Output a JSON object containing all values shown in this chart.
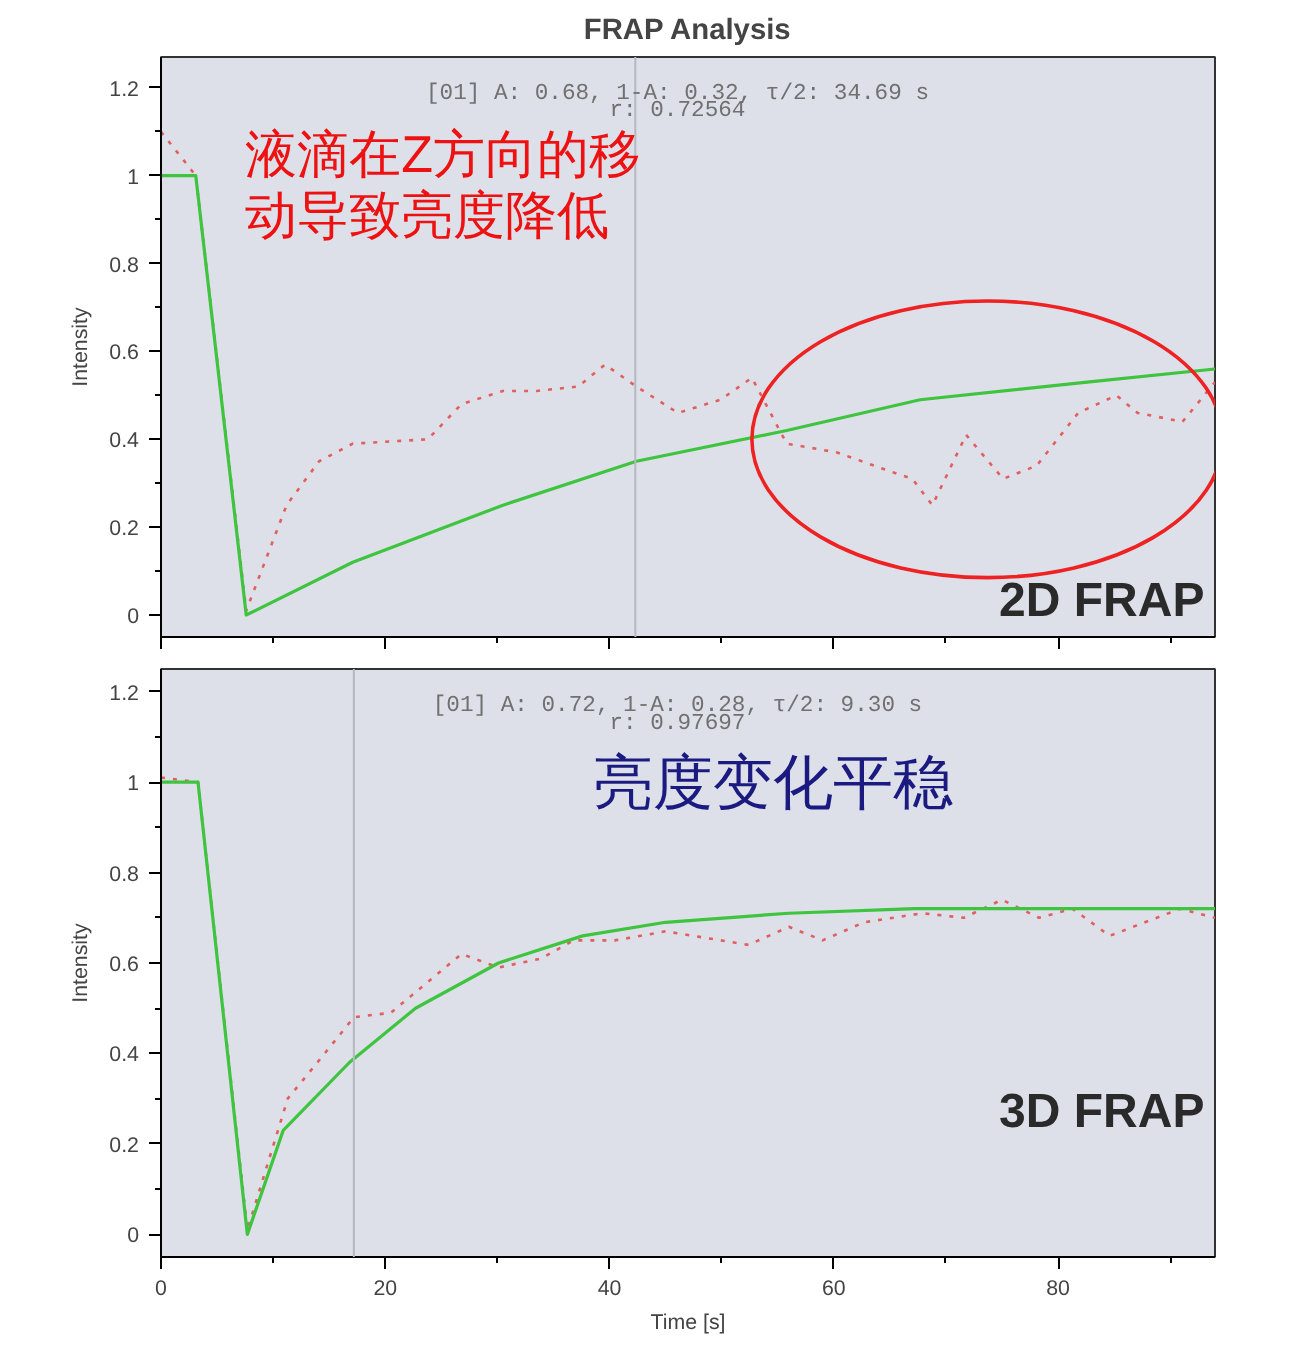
{
  "chart_data": [
    {
      "type": "line",
      "title": "FRAP Analysis",
      "ylabel": "Intensity",
      "xlim": [
        0,
        94
      ],
      "xticks": [
        0,
        20,
        40,
        60,
        80
      ],
      "ylim": [
        -0.05,
        1.27
      ],
      "yticks": [
        0,
        0.2,
        0.4,
        0.6,
        0.8,
        1,
        1.2
      ],
      "tick_labels": "y",
      "grid": false,
      "series": [
        {
          "color": "#e06060",
          "line_style": "dotted",
          "x": [
            0,
            3.1,
            7.6,
            11.2,
            14.1,
            17.1,
            23.8,
            26.8,
            30.5,
            33.5,
            37.2,
            39.6,
            42.4,
            46.1,
            49.9,
            52.7,
            55.8,
            60.3,
            64.7,
            67,
            68.8,
            71.8,
            75.1,
            78.1,
            81.8,
            85.2,
            87.1,
            91.1,
            94
          ],
          "values": [
            1.1,
            1.0,
            0.01,
            0.25,
            0.35,
            0.39,
            0.4,
            0.48,
            0.51,
            0.51,
            0.52,
            0.57,
            0.52,
            0.46,
            0.49,
            0.54,
            0.39,
            0.37,
            0.33,
            0.31,
            0.25,
            0.41,
            0.31,
            0.34,
            0.46,
            0.5,
            0.46,
            0.44,
            0.53
          ]
        },
        {
          "color": "#3ec43e",
          "line_style": "solid",
          "x": [
            0,
            3.1,
            7.6,
            17.1,
            30.5,
            42.4,
            55.8,
            67.7,
            82.6,
            94
          ],
          "values": [
            1.0,
            1.0,
            0.0,
            0.12,
            0.25,
            0.35,
            0.42,
            0.49,
            0.53,
            0.56
          ]
        }
      ],
      "ref_lines": [
        {
          "axis": "x",
          "value": 42.3,
          "color": "#b4b8c0"
        }
      ],
      "annotations": [
        "[01] A: 0.68, 1-A: 0.32, τ/2: 34.69 s",
        "r: 0.72564",
        "液滴在Z方向的移",
        "动导致亮度降低",
        "2D FRAP"
      ]
    },
    {
      "type": "line",
      "xlabel": "Time [s]",
      "ylabel": "Intensity",
      "xlim": [
        0,
        94
      ],
      "xticks": [
        0,
        20,
        40,
        60,
        80
      ],
      "ylim": [
        -0.05,
        1.25
      ],
      "yticks": [
        0,
        0.2,
        0.4,
        0.6,
        0.8,
        1,
        1.2
      ],
      "grid": false,
      "series": [
        {
          "color": "#e06060",
          "line_style": "dotted",
          "x": [
            0,
            3.3,
            7.7,
            11.3,
            14.6,
            17.2,
            20.5,
            26.8,
            30.1,
            33.9,
            36.8,
            40.5,
            45,
            52.4,
            56,
            59,
            62.7,
            67.9,
            71.6,
            75,
            78.3,
            81.3,
            84.6,
            90.9,
            94
          ],
          "values": [
            1.01,
            1.0,
            0.01,
            0.3,
            0.4,
            0.48,
            0.49,
            0.62,
            0.59,
            0.61,
            0.65,
            0.65,
            0.67,
            0.64,
            0.68,
            0.65,
            0.69,
            0.71,
            0.7,
            0.74,
            0.7,
            0.72,
            0.66,
            0.72,
            0.7
          ]
        },
        {
          "color": "#3ec43e",
          "line_style": "solid",
          "x": [
            0,
            3.3,
            7.7,
            10.9,
            16.8,
            22.7,
            30.1,
            37.6,
            45,
            56,
            67.2,
            94
          ],
          "values": [
            1.0,
            1.0,
            0.0,
            0.23,
            0.38,
            0.5,
            0.6,
            0.66,
            0.69,
            0.71,
            0.72,
            0.72
          ]
        }
      ],
      "ref_lines": [
        {
          "axis": "x",
          "value": 17.2,
          "color": "#b4b8c0"
        }
      ],
      "annotations": [
        "[01] A: 0.72, 1-A: 0.28, τ/2: 9.30 s",
        "r: 0.97697",
        "亮度变化平稳",
        "3D FRAP"
      ]
    }
  ]
}
